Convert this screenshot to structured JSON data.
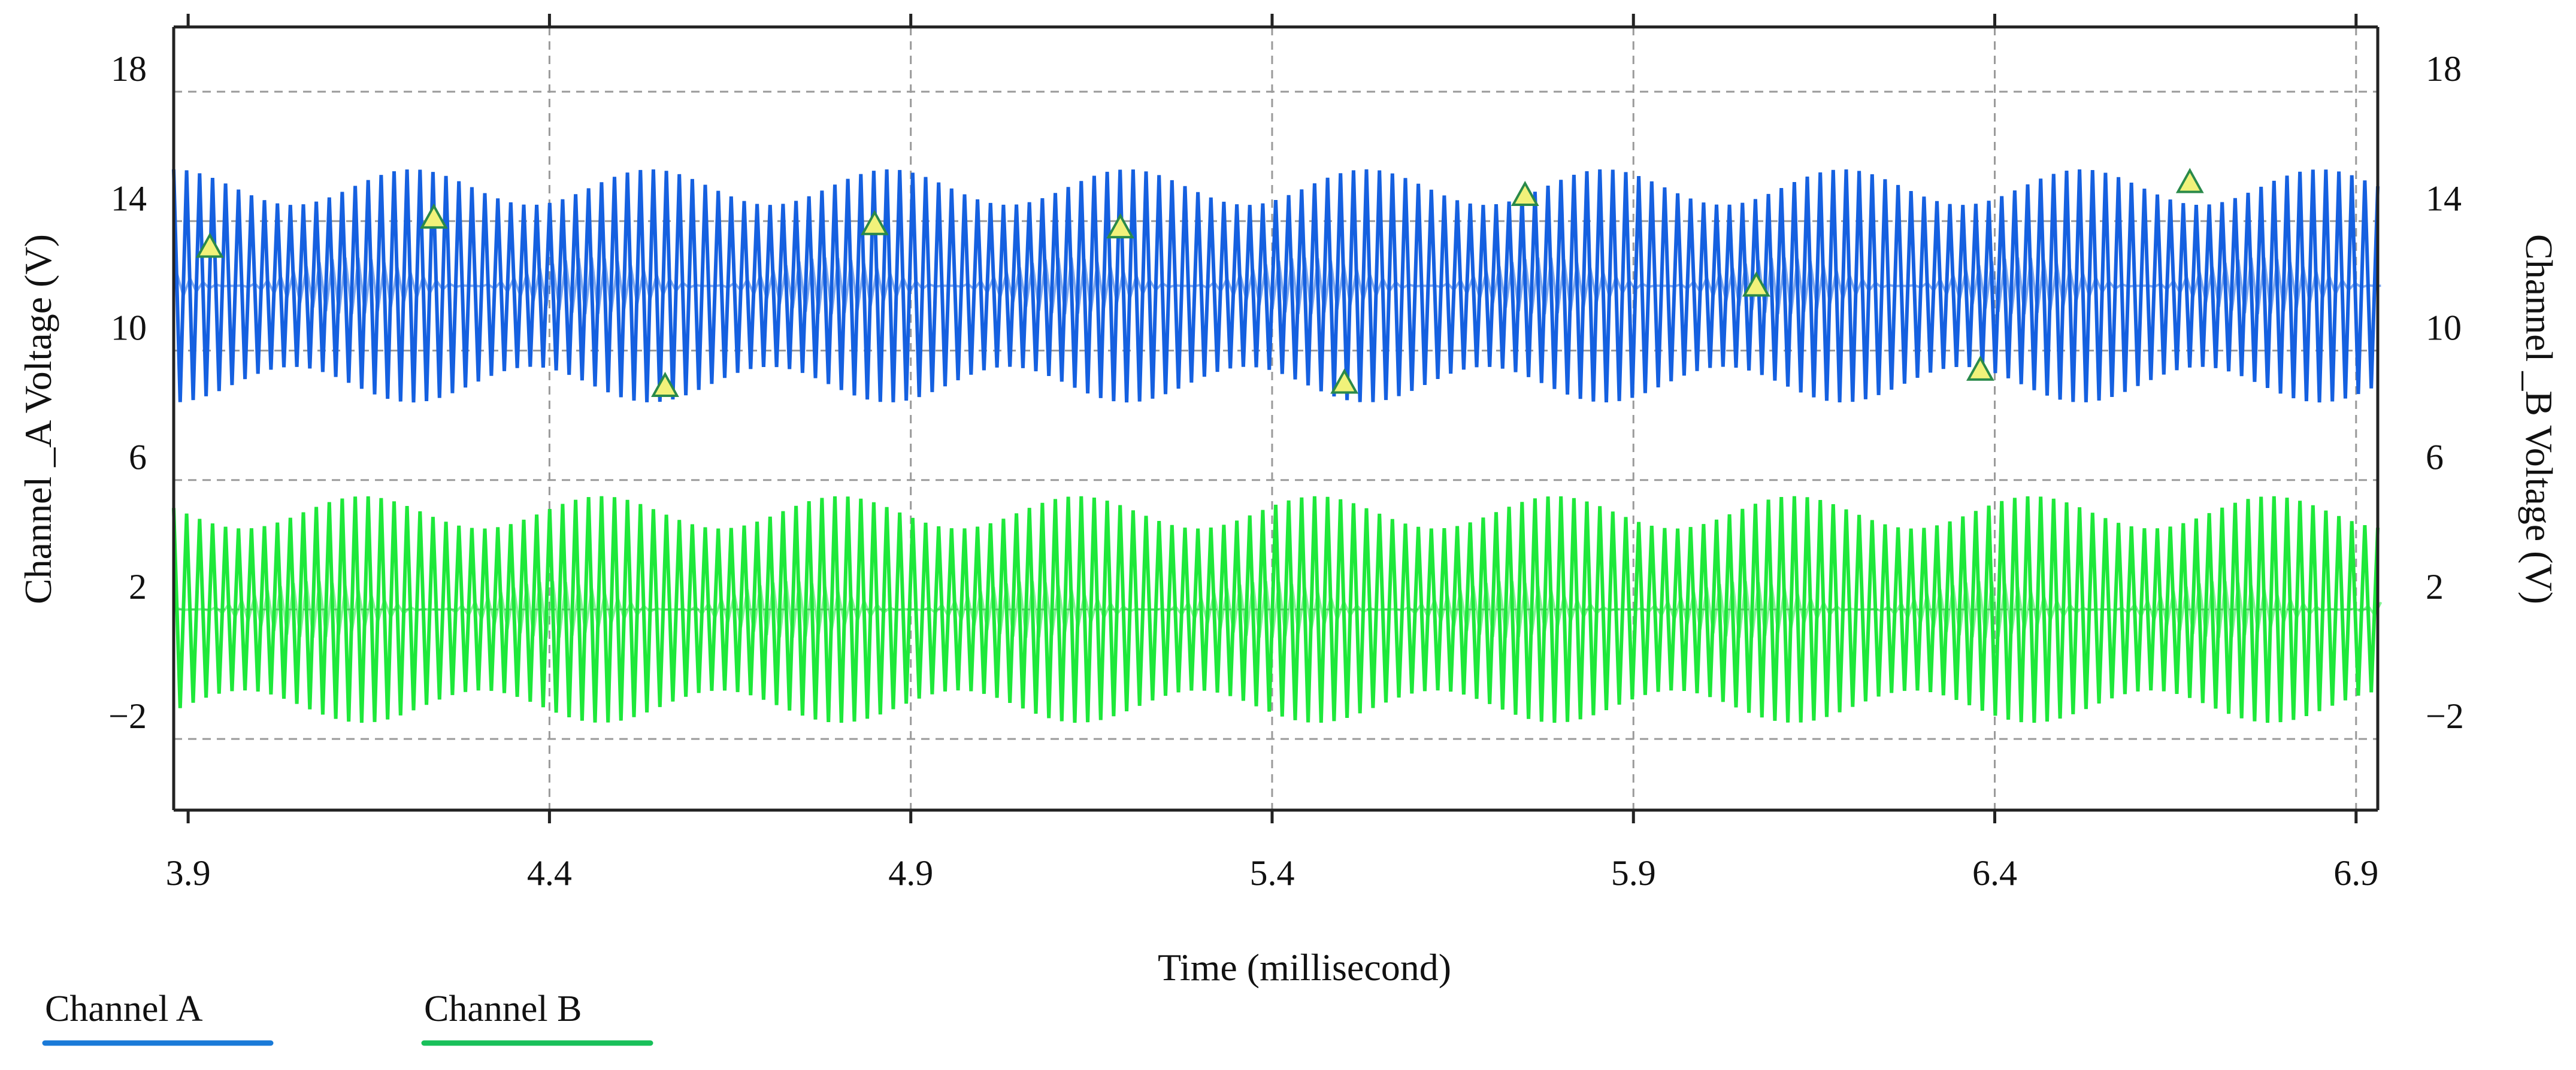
{
  "chart_data": {
    "type": "line",
    "title": "",
    "xlabel": "Time (millisecond)",
    "ylabel": "Channel _A Voltage (V)",
    "y2label": "Channel _B Voltage (V)",
    "xlim": [
      3.88,
      6.93
    ],
    "ylim": [
      -4.2,
      20
    ],
    "x_ticks": [
      "3.9",
      "4.4",
      "4.9",
      "5.4",
      "5.9",
      "6.4",
      "6.9"
    ],
    "x_tick_values": [
      3.9,
      4.4,
      4.9,
      5.4,
      5.9,
      6.4,
      6.9
    ],
    "y_ticks": [
      "−2",
      "2",
      "6",
      "10",
      "14",
      "18"
    ],
    "y_tick_values": [
      -2,
      2,
      6,
      10,
      14,
      18
    ],
    "grid": true,
    "legend_position": "bottom-left",
    "series": [
      {
        "name": "Channel A",
        "color": "#1560e0",
        "center": 12,
        "amp_min": 2.5,
        "amp_max": 3.6,
        "carrier_cycles": 170,
        "envelope_period_ms": 0.33,
        "markers": [
          {
            "x": 3.93,
            "y": 13.2
          },
          {
            "x": 4.24,
            "y": 14.1
          },
          {
            "x": 4.56,
            "y": 8.9
          },
          {
            "x": 4.85,
            "y": 13.9
          },
          {
            "x": 5.19,
            "y": 13.8
          },
          {
            "x": 5.5,
            "y": 9.0
          },
          {
            "x": 5.75,
            "y": 14.8
          },
          {
            "x": 6.07,
            "y": 12.0
          },
          {
            "x": 6.38,
            "y": 9.4
          },
          {
            "x": 6.67,
            "y": 15.2
          }
        ]
      },
      {
        "name": "Channel B",
        "color": "#1ee83a",
        "center": 2,
        "amp_min": 2.5,
        "amp_max": 3.5,
        "carrier_cycles": 170,
        "envelope_period_ms": 0.33,
        "markers": []
      }
    ],
    "legend": [
      {
        "label": "Channel A",
        "color": "#1a7ad8"
      },
      {
        "label": "Channel B",
        "color": "#19c05a"
      }
    ]
  }
}
